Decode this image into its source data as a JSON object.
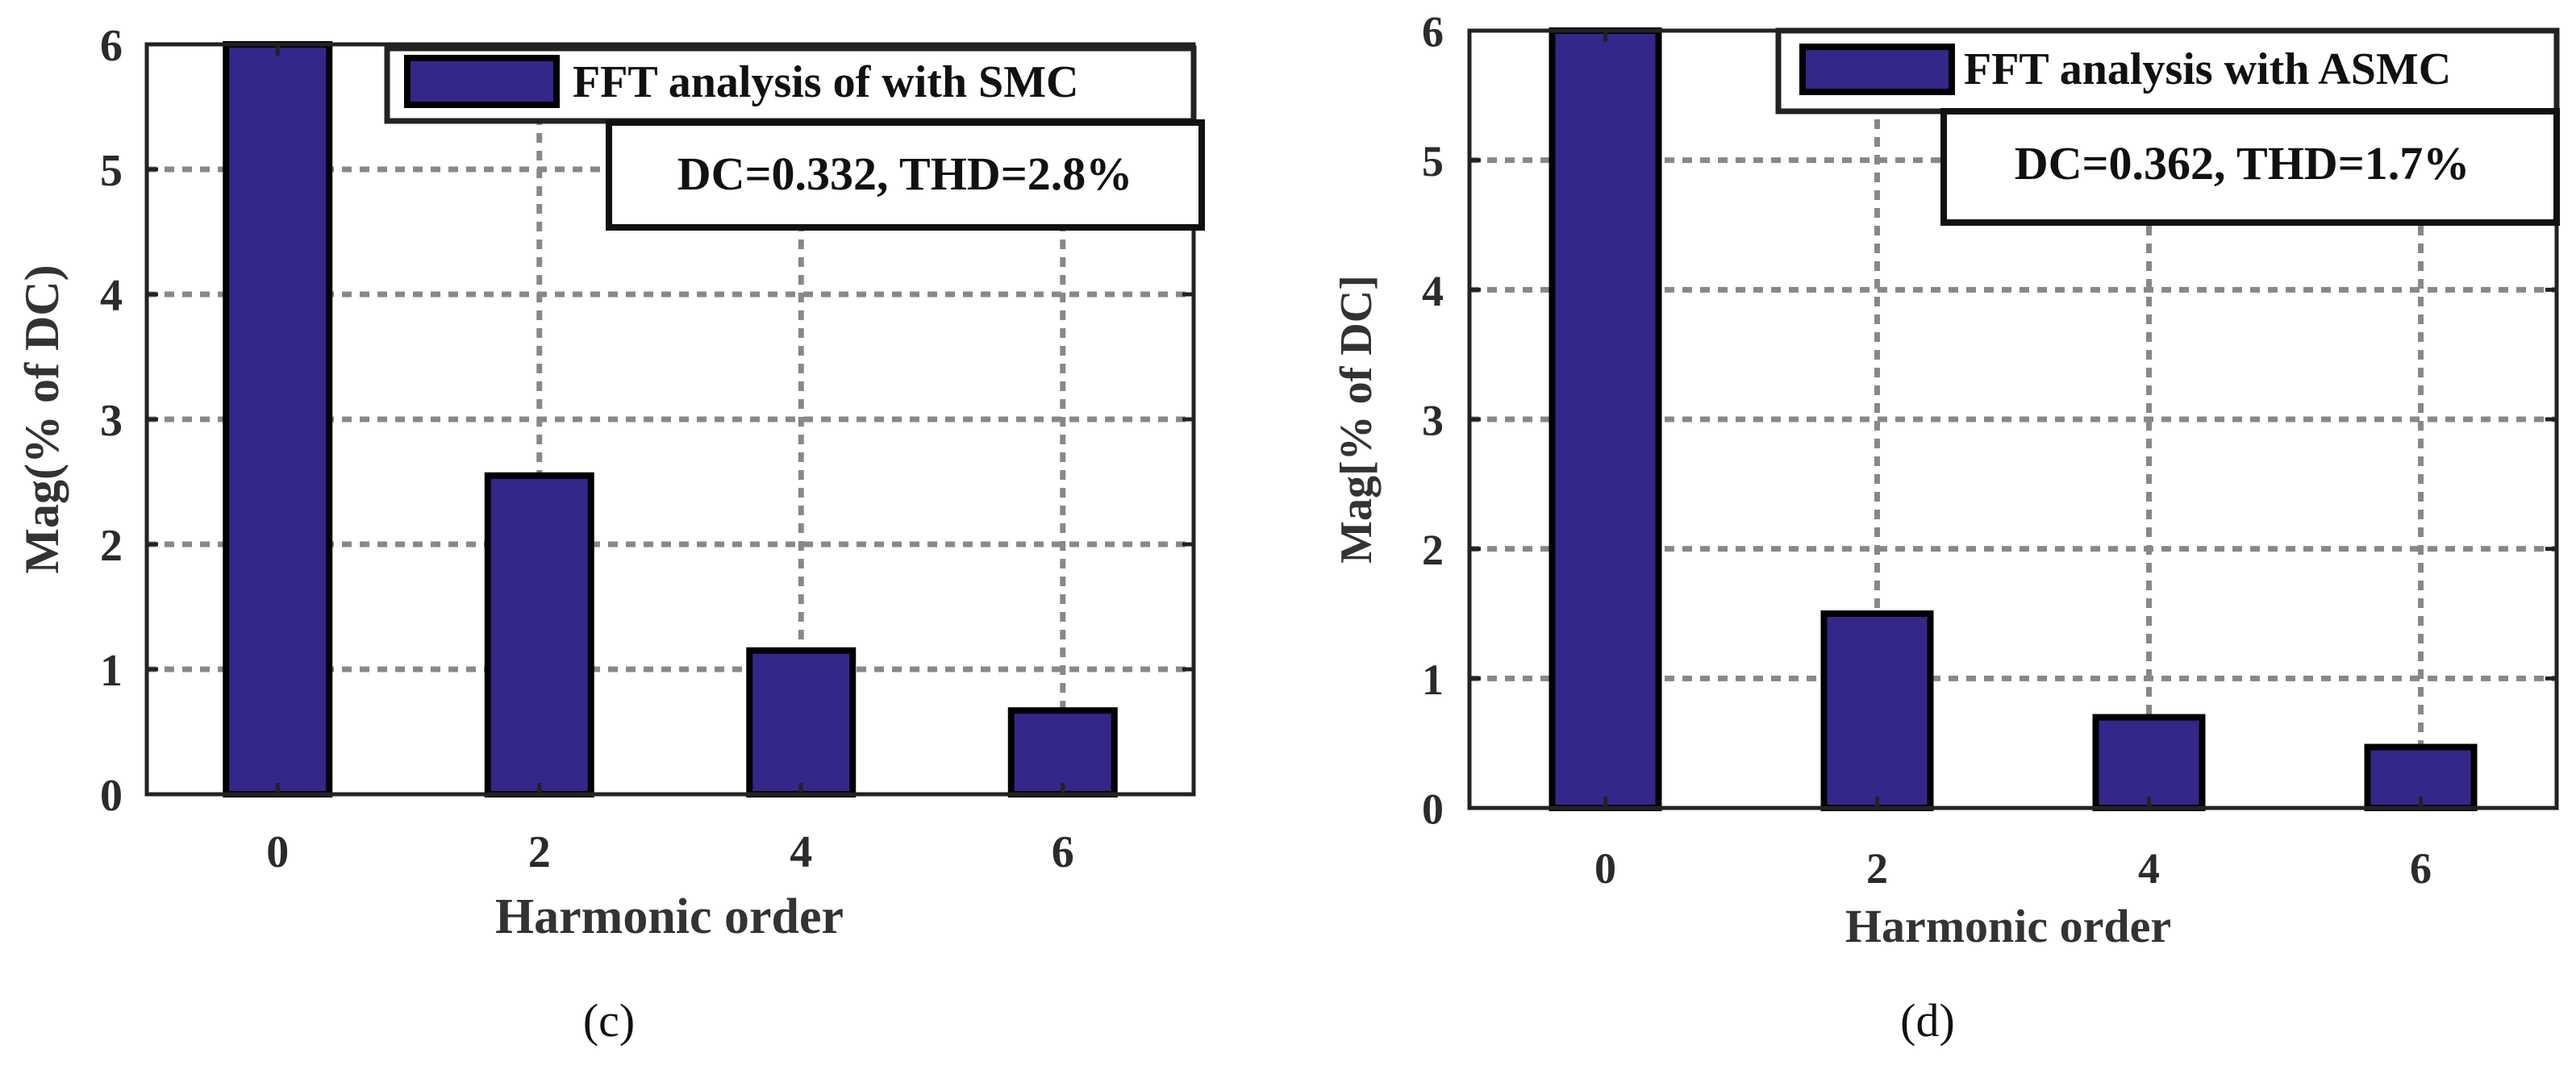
{
  "colors": {
    "bar": "#33278a",
    "edge": "#000000",
    "grid": "#888888"
  },
  "chart_data": [
    {
      "type": "bar",
      "panel_label": "(c)",
      "categories": [
        "0",
        "2",
        "4",
        "6"
      ],
      "x": [
        0,
        2,
        4,
        6
      ],
      "values": [
        6.0,
        2.55,
        1.15,
        0.67
      ],
      "legend": "FFT analysis of  with SMC",
      "legend_position": "top-right",
      "annotation": "DC=0.332, THD=2.8%",
      "xlabel": "Harmonic order",
      "ylabel": "Mag(% of DC)",
      "yticks": [
        0,
        1,
        2,
        3,
        4,
        5,
        6
      ],
      "ylim": [
        0,
        6
      ],
      "xlim": [
        -1,
        7
      ],
      "grid": true
    },
    {
      "type": "bar",
      "panel_label": "(d)",
      "categories": [
        "0",
        "2",
        "4",
        "6"
      ],
      "x": [
        0,
        2,
        4,
        6
      ],
      "values": [
        6.0,
        1.5,
        0.7,
        0.47
      ],
      "legend": "FFT analysis with ASMC",
      "legend_position": "top-right",
      "annotation": "DC=0.362, THD=1.7%",
      "xlabel": "Harmonic order",
      "ylabel": "Mag[% of DC]",
      "yticks": [
        0,
        1,
        2,
        3,
        4,
        5,
        6
      ],
      "ylim": [
        0,
        6
      ],
      "xlim": [
        -1,
        7
      ],
      "grid": true
    }
  ]
}
